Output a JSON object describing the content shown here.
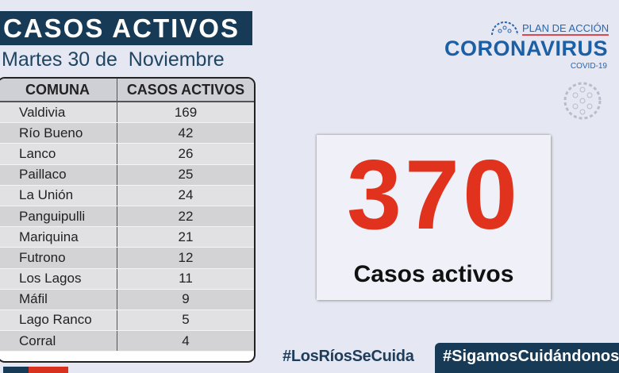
{
  "title": "CASOS ACTIVOS",
  "date": "Martes 30 de  Noviembre",
  "table": {
    "headers": [
      "COMUNA",
      "CASOS ACTIVOS"
    ],
    "rows": [
      [
        "Valdivia",
        "169"
      ],
      [
        "Río Bueno",
        "42"
      ],
      [
        "Lanco",
        "26"
      ],
      [
        "Paillaco",
        "25"
      ],
      [
        "La Unión",
        "24"
      ],
      [
        "Panguipulli",
        "22"
      ],
      [
        "Mariquina",
        "21"
      ],
      [
        "Futrono",
        "12"
      ],
      [
        "Los Lagos",
        "11"
      ],
      [
        "Máfil",
        "9"
      ],
      [
        "Lago Ranco",
        "5"
      ],
      [
        "Corral",
        "4"
      ]
    ]
  },
  "logo": {
    "plan": "PLAN DE ACCIÓN",
    "name": "CORONAVIRUS",
    "sub": "COVID-19"
  },
  "total": {
    "value": "370",
    "label": "Casos activos"
  },
  "hashtags": [
    "#LosRíosSeCuida",
    "#SigamosCuidándonos"
  ],
  "colors": {
    "navy": "#173b56",
    "red": "#e0321c",
    "blue": "#1b5fa6"
  }
}
